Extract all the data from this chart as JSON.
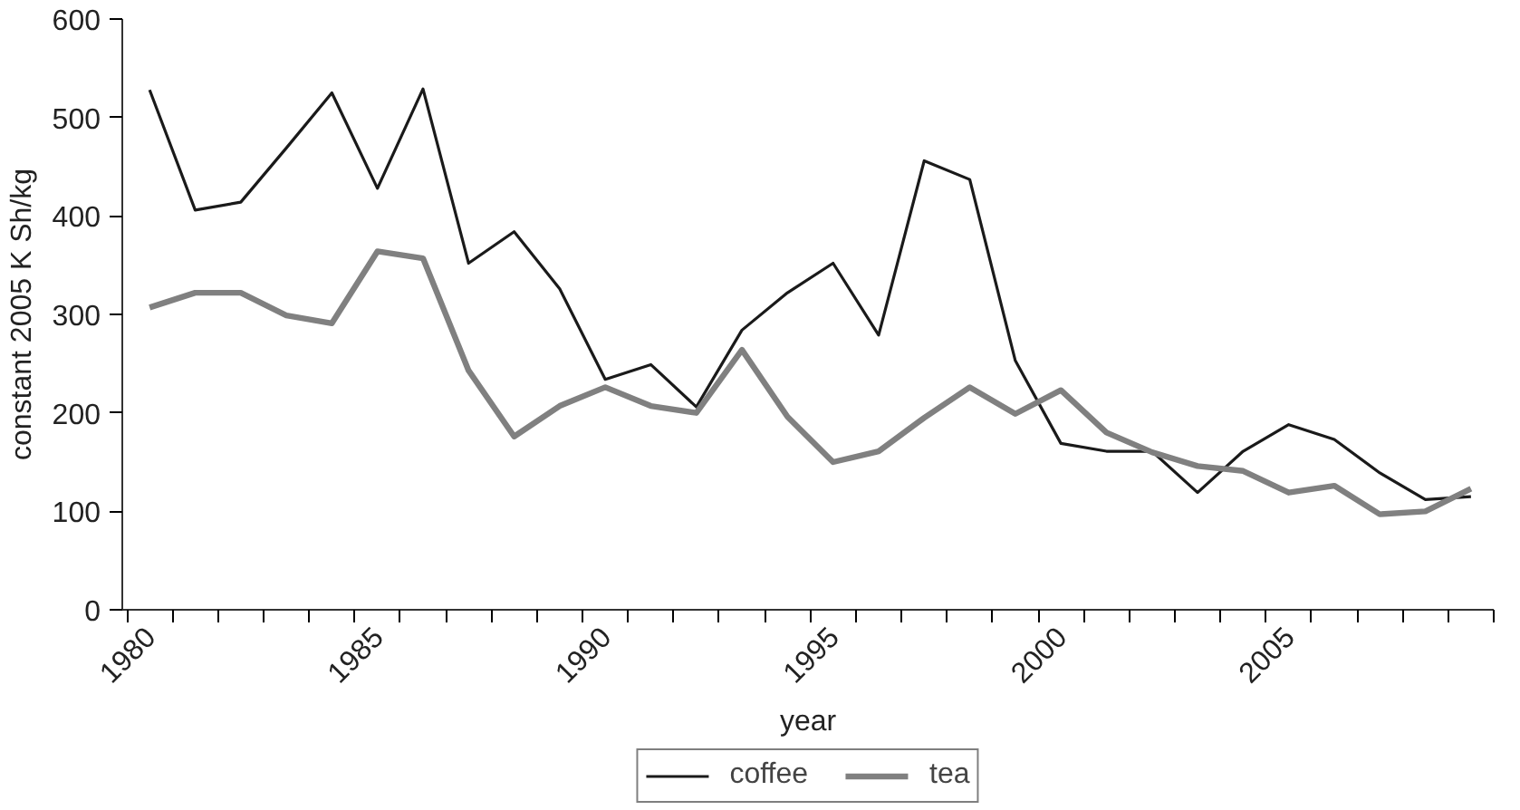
{
  "chart_data": {
    "type": "line",
    "xlabel": "year",
    "ylabel": "constant 2005 K Sh/kg",
    "categories": [
      "1980",
      null,
      null,
      null,
      null,
      "1985",
      null,
      null,
      null,
      null,
      "1990",
      null,
      null,
      null,
      null,
      "1995",
      null,
      null,
      null,
      null,
      "2000",
      null,
      null,
      null,
      null,
      "2005",
      null,
      null,
      null,
      null
    ],
    "series": [
      {
        "name": "coffee",
        "color": "#1a1a1a",
        "values": [
          528,
          406,
          414,
          469,
          525,
          428,
          529,
          352,
          384,
          326,
          234,
          249,
          206,
          284,
          322,
          352,
          279,
          456,
          437,
          253,
          169,
          161,
          161,
          119,
          161,
          188,
          173,
          139,
          112,
          115
        ]
      },
      {
        "name": "tea",
        "color": "#808080",
        "values": [
          307,
          322,
          322,
          299,
          291,
          364,
          357,
          243,
          176,
          207,
          226,
          207,
          200,
          264,
          196,
          150,
          161,
          195,
          226,
          199,
          223,
          180,
          160,
          146,
          141,
          119,
          126,
          97,
          100,
          123
        ]
      }
    ],
    "ylim": [
      0,
      600
    ],
    "yticks": [
      0,
      100,
      200,
      300,
      400,
      500,
      600
    ],
    "grid": false,
    "legend": "bottom",
    "marker": "none",
    "line_style": "solid"
  }
}
